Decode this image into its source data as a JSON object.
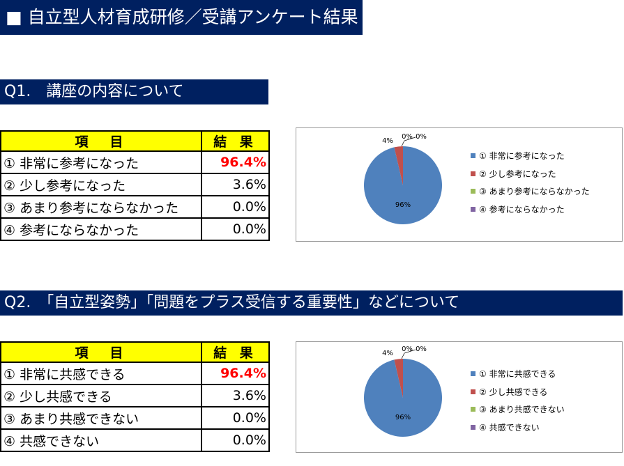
{
  "title": "■ 自立型人材育成研修／受講アンケート結果",
  "colors": [
    "#4f81bd",
    "#c0504d",
    "#9bbb59",
    "#8064a2"
  ],
  "header": {
    "item": "項　目",
    "result": "結 果"
  },
  "sections": [
    {
      "heading": "Q1.　講座の内容について",
      "rows": [
        {
          "label": "① 非常に参考になった",
          "value": "96.4%"
        },
        {
          "label": "② 少し参考になった",
          "value": "3.6%"
        },
        {
          "label": "③ あまり参考にならなかった",
          "value": "0.0%"
        },
        {
          "label": "④ 参考にならなかった",
          "value": "0.0%"
        }
      ],
      "chart_data": {
        "type": "pie",
        "labels": [
          "① 非常に参考になった",
          "② 少し参考になった",
          "③ あまり参考にならなかった",
          "④ 参考にならなかった"
        ],
        "values": [
          96.4,
          3.6,
          0,
          0
        ],
        "data_labels": [
          "96%",
          "4%",
          "0%",
          "0%"
        ]
      }
    },
    {
      "heading": "Q2.　「自立型姿勢」「問題をプラス受信する重要性」などについて",
      "rows": [
        {
          "label": "① 非常に共感できる",
          "value": "96.4%"
        },
        {
          "label": "② 少し共感できる",
          "value": "3.6%"
        },
        {
          "label": "③ あまり共感できない",
          "value": "0.0%"
        },
        {
          "label": "④ 共感できない",
          "value": "0.0%"
        }
      ],
      "chart_data": {
        "type": "pie",
        "labels": [
          "① 非常に共感できる",
          "② 少し共感できる",
          "③ あまり共感できない",
          "④ 共感できない"
        ],
        "values": [
          96.4,
          3.6,
          0,
          0
        ],
        "data_labels": [
          "96%",
          "4%",
          "0%",
          "0%"
        ]
      }
    }
  ]
}
